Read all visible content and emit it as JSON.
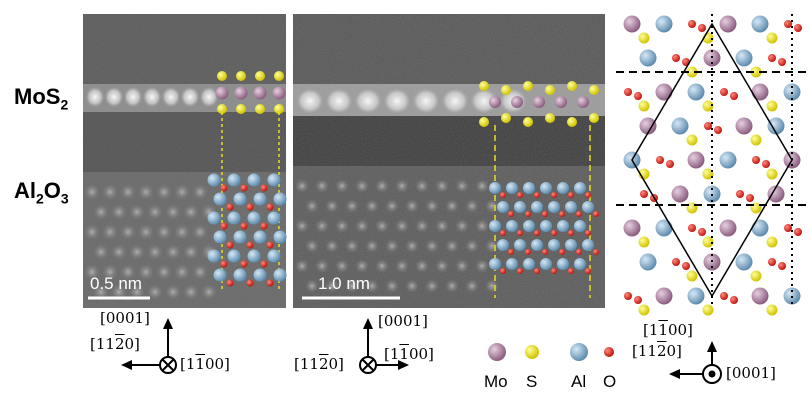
{
  "figure": {
    "labels": {
      "top_layer": "MoS",
      "top_layer_sub": "2",
      "bottom_layer_a": "Al",
      "bottom_layer_a_sub": "2",
      "bottom_layer_b": "O",
      "bottom_layer_b_sub": "3"
    },
    "panel_left": {
      "scale_bar": "0.5 nm",
      "axis_up": "[0001]",
      "axis_left": "[11",
      "axis_left_bar": "2",
      "axis_left_end": "0]",
      "axis_into": "[1",
      "axis_into_bar": "1",
      "axis_into_end": "00]"
    },
    "panel_middle": {
      "scale_bar": "1.0 nm",
      "axis_up": "[0001]",
      "axis_left": "[11",
      "axis_left_bar": "2",
      "axis_left_end": "0]",
      "axis_right": "[1",
      "axis_right_bar": "1",
      "axis_right_end": "00]"
    },
    "panel_right": {
      "axis_up": "[1",
      "axis_up_bar": "1",
      "axis_up_end": "00]",
      "axis_left": "[11",
      "axis_left_bar": "2",
      "axis_left_end": "0]",
      "axis_out": "[0001]"
    },
    "legend": [
      {
        "label": "Mo",
        "color": "#b08aa6"
      },
      {
        "label": "S",
        "color": "#f2e616"
      },
      {
        "label": "Al",
        "color": "#7fa6c4"
      },
      {
        "label": "O",
        "color": "#e02b22"
      }
    ]
  }
}
